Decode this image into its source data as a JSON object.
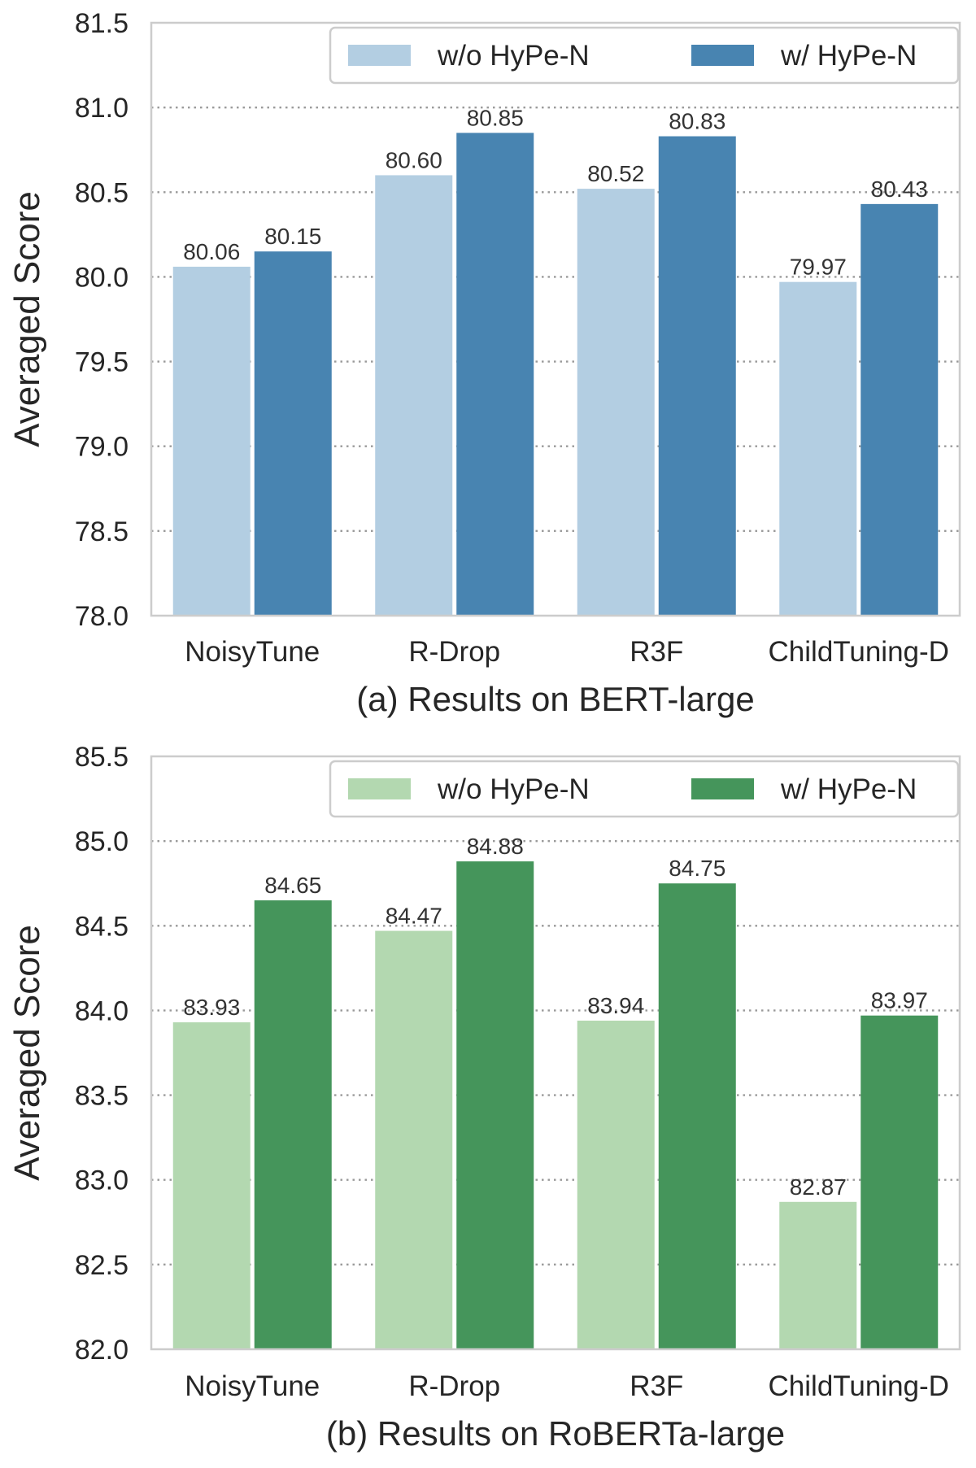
{
  "chart_data": [
    {
      "type": "bar",
      "title": "(a) Results on BERT-large",
      "xlabel": "",
      "ylabel": "Averaged Score",
      "categories": [
        "NoisyTune",
        "R-Drop",
        "R3F",
        "ChildTuning-D"
      ],
      "series": [
        {
          "name": "w/o HyPe-N",
          "values": [
            80.06,
            80.6,
            80.52,
            79.97
          ],
          "labels": [
            "80.06",
            "80.60",
            "80.52",
            "79.97"
          ],
          "color": "#b3cee2"
        },
        {
          "name": "w/ HyPe-N",
          "values": [
            80.15,
            80.85,
            80.83,
            80.43
          ],
          "labels": [
            "80.15",
            "80.85",
            "80.83",
            "80.43"
          ],
          "color": "#4884b1"
        }
      ],
      "ylim": [
        78.0,
        81.5
      ],
      "yticks": [
        78.0,
        78.5,
        79.0,
        79.5,
        80.0,
        80.5,
        81.0,
        81.5
      ],
      "ytick_labels": [
        "78.0",
        "78.5",
        "79.0",
        "79.5",
        "80.0",
        "80.5",
        "81.0",
        "81.5"
      ],
      "grid": true,
      "legend_position": "top-right"
    },
    {
      "type": "bar",
      "title": "(b) Results on RoBERTa-large",
      "xlabel": "",
      "ylabel": "Averaged Score",
      "categories": [
        "NoisyTune",
        "R-Drop",
        "R3F",
        "ChildTuning-D"
      ],
      "series": [
        {
          "name": "w/o HyPe-N",
          "values": [
            83.93,
            84.47,
            83.94,
            82.87
          ],
          "labels": [
            "83.93",
            "84.47",
            "83.94",
            "82.87"
          ],
          "color": "#b3d8b0"
        },
        {
          "name": "w/ HyPe-N",
          "values": [
            84.65,
            84.88,
            84.75,
            83.97
          ],
          "labels": [
            "84.65",
            "84.88",
            "84.75",
            "83.97"
          ],
          "color": "#45955b"
        }
      ],
      "ylim": [
        82.0,
        85.5
      ],
      "yticks": [
        82.0,
        82.5,
        83.0,
        83.5,
        84.0,
        84.5,
        85.0,
        85.5
      ],
      "ytick_labels": [
        "82.0",
        "82.5",
        "83.0",
        "83.5",
        "84.0",
        "84.5",
        "85.0",
        "85.5"
      ],
      "grid": true,
      "legend_position": "top-right"
    }
  ]
}
